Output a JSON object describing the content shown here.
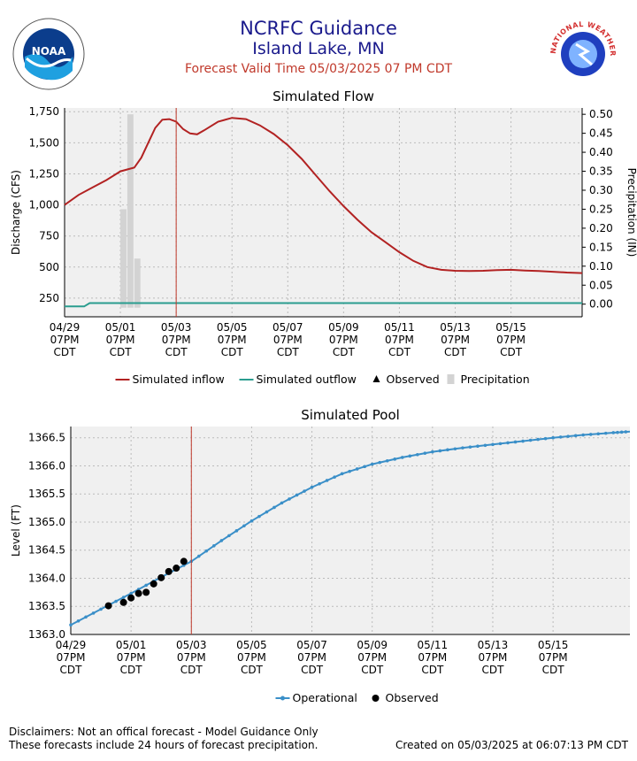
{
  "header": {
    "title": "NCRFC Guidance",
    "subtitle": "Island Lake, MN",
    "valid_time": "Forecast Valid Time 05/03/2025 07 PM CDT"
  },
  "logos": {
    "noaa": {
      "icon": "noaa-logo",
      "text": "NOAA"
    },
    "nws": {
      "icon": "nws-logo",
      "text": "NATIONAL WEATHER SERVICE"
    }
  },
  "colors": {
    "inflow": "#b22222",
    "outflow": "#2a9d8f",
    "precip": "#d3d3d3",
    "pool": "#3a8fc8",
    "forecast_line": "#c0392b",
    "plot_bg": "#f0f0f0",
    "grid": "#bbbbbb"
  },
  "footer": {
    "disclaimer_1": "Disclaimers: Not an offical forecast - Model Guidance Only",
    "disclaimer_2": "These forecasts include 24 hours of forecast precipitation.",
    "created": "Created on 05/03/2025 at 06:07:13 PM CDT"
  },
  "chart_data": [
    {
      "type": "line",
      "title": "Simulated Flow",
      "ylabel": "Discharge (CFS)",
      "y2label": "Precipitation (IN)",
      "ylim": [
        100,
        1780
      ],
      "y2lim": [
        -0.0333,
        0.5167
      ],
      "yticks": [
        "250",
        "500",
        "750",
        "1,000",
        "1,250",
        "1,500",
        "1,750"
      ],
      "y2ticks": [
        "0.00",
        "0.05",
        "0.10",
        "0.15",
        "0.20",
        "0.25",
        "0.30",
        "0.35",
        "0.40",
        "0.45",
        "0.50"
      ],
      "xlim": [
        0,
        18.55
      ],
      "xticks": [
        {
          "x": 0,
          "lines": [
            "04/29",
            "07PM",
            "CDT"
          ]
        },
        {
          "x": 2,
          "lines": [
            "05/01",
            "07PM",
            "CDT"
          ]
        },
        {
          "x": 4,
          "lines": [
            "05/03",
            "07PM",
            "CDT"
          ]
        },
        {
          "x": 6,
          "lines": [
            "05/05",
            "07PM",
            "CDT"
          ]
        },
        {
          "x": 8,
          "lines": [
            "05/07",
            "07PM",
            "CDT"
          ]
        },
        {
          "x": 10,
          "lines": [
            "05/09",
            "07PM",
            "CDT"
          ]
        },
        {
          "x": 12,
          "lines": [
            "05/11",
            "07PM",
            "CDT"
          ]
        },
        {
          "x": 14,
          "lines": [
            "05/13",
            "07PM",
            "CDT"
          ]
        },
        {
          "x": 16,
          "lines": [
            "05/15",
            "07PM",
            "CDT"
          ]
        }
      ],
      "forecast_time_x": 4,
      "grid": true,
      "legend_position": "bottom",
      "legend": [
        {
          "label": "Simulated inflow",
          "kind": "line",
          "color": "#b22222"
        },
        {
          "label": "Simulated outflow",
          "kind": "line",
          "color": "#2a9d8f"
        },
        {
          "label": "Observed",
          "kind": "triangle",
          "color": "#000000"
        },
        {
          "label": "Precipitation",
          "kind": "bar",
          "color": "#d3d3d3"
        }
      ],
      "precip_bars": [
        {
          "x0": 2.0,
          "x1": 2.25,
          "value": 0.25
        },
        {
          "x0": 2.25,
          "x1": 2.5,
          "value": 0.5
        },
        {
          "x0": 2.5,
          "x1": 2.75,
          "value": 0.12
        }
      ],
      "series": [
        {
          "name": "Simulated inflow",
          "color": "#b22222",
          "points": [
            [
              0,
              1000
            ],
            [
              0.5,
              1080
            ],
            [
              1,
              1140
            ],
            [
              1.5,
              1200
            ],
            [
              2,
              1270
            ],
            [
              2.5,
              1300
            ],
            [
              2.75,
              1380
            ],
            [
              3,
              1500
            ],
            [
              3.25,
              1620
            ],
            [
              3.5,
              1685
            ],
            [
              3.75,
              1690
            ],
            [
              4,
              1670
            ],
            [
              4.25,
              1610
            ],
            [
              4.5,
              1575
            ],
            [
              4.75,
              1568
            ],
            [
              5,
              1600
            ],
            [
              5.5,
              1670
            ],
            [
              6,
              1700
            ],
            [
              6.5,
              1690
            ],
            [
              7,
              1640
            ],
            [
              7.5,
              1570
            ],
            [
              8,
              1480
            ],
            [
              8.5,
              1370
            ],
            [
              9,
              1240
            ],
            [
              9.5,
              1110
            ],
            [
              10,
              990
            ],
            [
              10.5,
              880
            ],
            [
              11,
              780
            ],
            [
              11.5,
              700
            ],
            [
              12,
              620
            ],
            [
              12.5,
              550
            ],
            [
              13,
              500
            ],
            [
              13.5,
              478
            ],
            [
              14,
              470
            ],
            [
              14.5,
              468
            ],
            [
              15,
              470
            ],
            [
              15.5,
              476
            ],
            [
              16,
              478
            ],
            [
              16.5,
              472
            ],
            [
              17,
              468
            ],
            [
              17.5,
              462
            ],
            [
              18,
              456
            ],
            [
              18.55,
              452
            ]
          ]
        },
        {
          "name": "Simulated outflow",
          "color": "#2a9d8f",
          "points": [
            [
              0,
              183
            ],
            [
              0.7,
              183
            ],
            [
              0.9,
              210
            ],
            [
              18.55,
              210
            ]
          ]
        }
      ]
    },
    {
      "type": "line",
      "title": "Simulated Pool",
      "ylabel": "Level (FT)",
      "ylim": [
        1363.0,
        1366.7
      ],
      "yticks": [
        "1363.0",
        "1363.5",
        "1364.0",
        "1364.5",
        "1365.0",
        "1365.5",
        "1366.0",
        "1366.5"
      ],
      "xlim": [
        0,
        18.55
      ],
      "xticks": [
        {
          "x": 0,
          "lines": [
            "04/29",
            "07PM",
            "CDT"
          ]
        },
        {
          "x": 2,
          "lines": [
            "05/01",
            "07PM",
            "CDT"
          ]
        },
        {
          "x": 4,
          "lines": [
            "05/03",
            "07PM",
            "CDT"
          ]
        },
        {
          "x": 6,
          "lines": [
            "05/05",
            "07PM",
            "CDT"
          ]
        },
        {
          "x": 8,
          "lines": [
            "05/07",
            "07PM",
            "CDT"
          ]
        },
        {
          "x": 10,
          "lines": [
            "05/09",
            "07PM",
            "CDT"
          ]
        },
        {
          "x": 12,
          "lines": [
            "05/11",
            "07PM",
            "CDT"
          ]
        },
        {
          "x": 14,
          "lines": [
            "05/13",
            "07PM",
            "CDT"
          ]
        },
        {
          "x": 16,
          "lines": [
            "05/15",
            "07PM",
            "CDT"
          ]
        }
      ],
      "forecast_time_x": 4,
      "grid": true,
      "legend_position": "bottom",
      "legend": [
        {
          "label": "Operational",
          "kind": "line-dot",
          "color": "#3a8fc8"
        },
        {
          "label": "Observed",
          "kind": "circle",
          "color": "#000000"
        }
      ],
      "series": [
        {
          "name": "Operational",
          "color": "#3a8fc8",
          "points": [
            [
              0,
              1363.17
            ],
            [
              1,
              1363.45
            ],
            [
              2,
              1363.73
            ],
            [
              3,
              1364.02
            ],
            [
              4,
              1364.3
            ],
            [
              5,
              1364.67
            ],
            [
              6,
              1365.02
            ],
            [
              7,
              1365.34
            ],
            [
              8,
              1365.62
            ],
            [
              9,
              1365.86
            ],
            [
              10,
              1366.03
            ],
            [
              11,
              1366.15
            ],
            [
              12,
              1366.25
            ],
            [
              13,
              1366.32
            ],
            [
              14,
              1366.38
            ],
            [
              15,
              1366.44
            ],
            [
              16,
              1366.5
            ],
            [
              17,
              1366.55
            ],
            [
              18,
              1366.59
            ],
            [
              18.55,
              1366.61
            ]
          ]
        },
        {
          "name": "Observed",
          "color": "#000000",
          "points": [
            [
              1.25,
              1363.51
            ],
            [
              1.75,
              1363.57
            ],
            [
              2.0,
              1363.65
            ],
            [
              2.25,
              1363.73
            ],
            [
              2.5,
              1363.75
            ],
            [
              2.75,
              1363.9
            ],
            [
              3.0,
              1364.01
            ],
            [
              3.25,
              1364.12
            ],
            [
              3.5,
              1364.18
            ],
            [
              3.75,
              1364.3
            ]
          ]
        }
      ]
    }
  ]
}
